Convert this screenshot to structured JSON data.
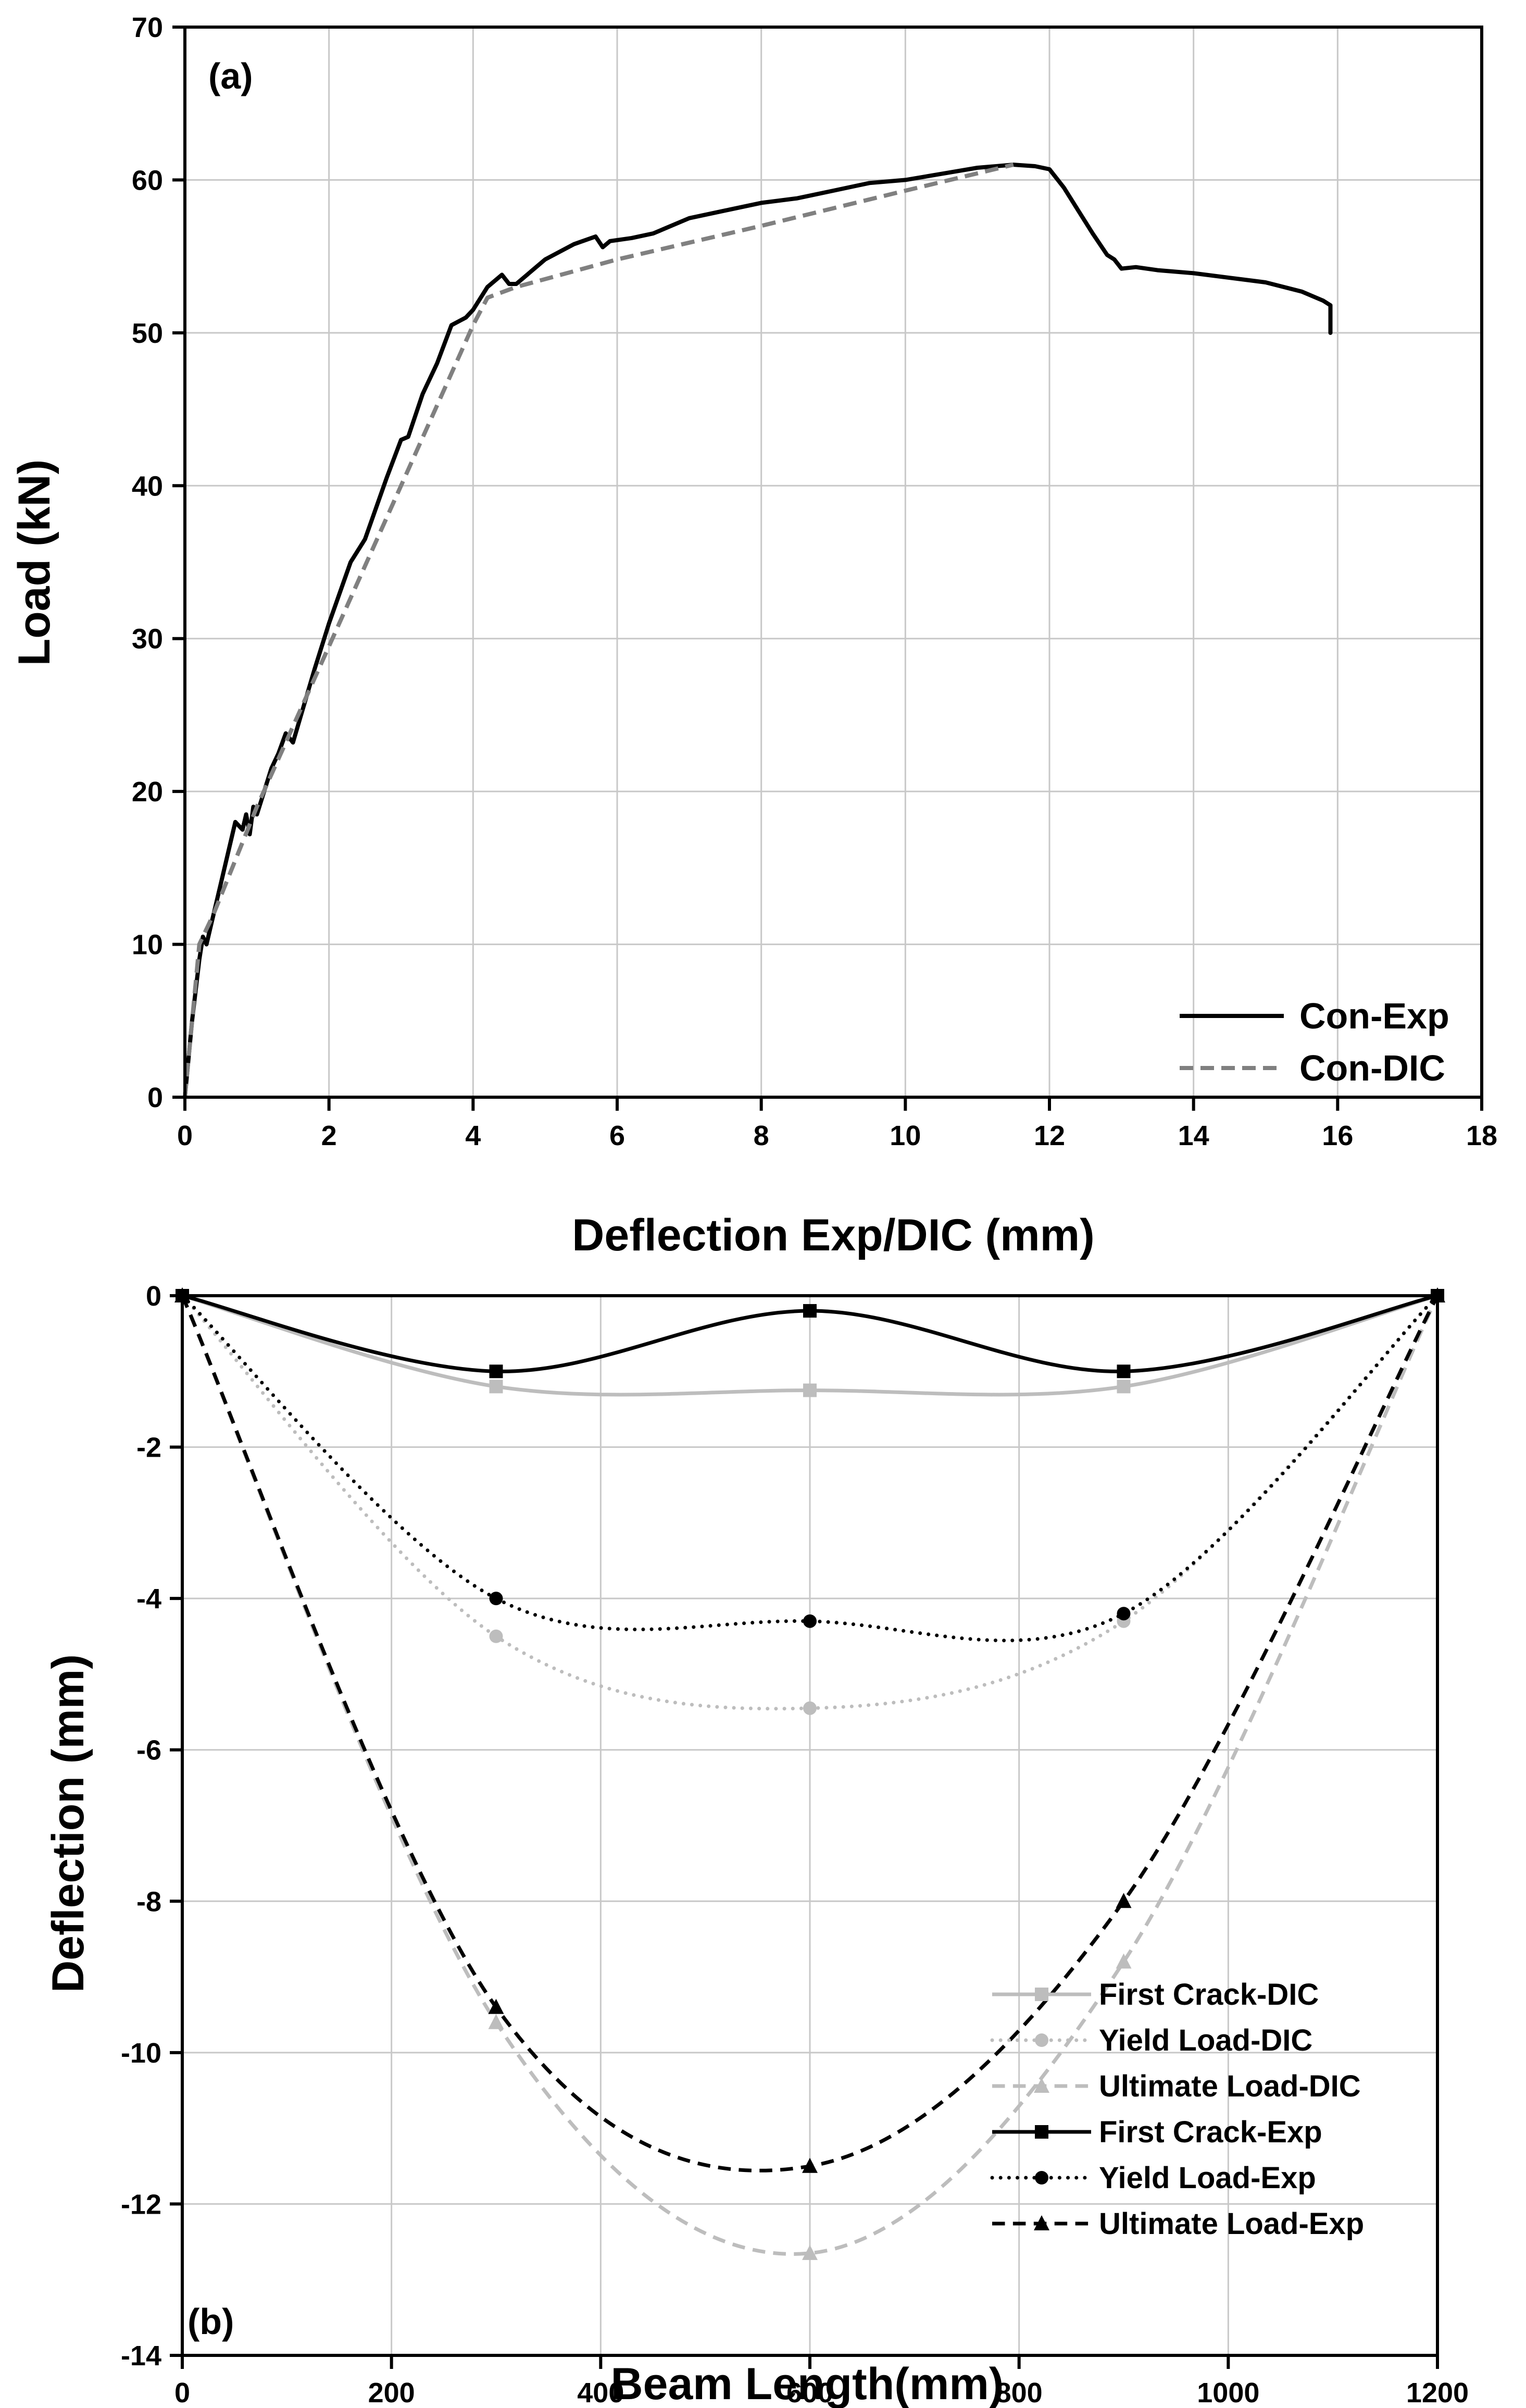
{
  "chart_data": [
    {
      "type": "line",
      "panel_label": "(a)",
      "xlabel": "Deflection Exp/DIC (mm)",
      "ylabel": "Load (kN)",
      "xlim": [
        0,
        18
      ],
      "ylim": [
        0,
        70
      ],
      "xticks": [
        0,
        2,
        4,
        6,
        8,
        10,
        12,
        14,
        16,
        18
      ],
      "yticks": [
        0,
        10,
        20,
        30,
        40,
        50,
        60,
        70
      ],
      "grid": true,
      "legend_position": "bottom-right",
      "series": [
        {
          "name": "Con-Exp",
          "color": "#000000",
          "dash": "solid",
          "x": [
            0,
            0.1,
            0.2,
            0.25,
            0.3,
            0.35,
            0.4,
            0.5,
            0.6,
            0.7,
            0.8,
            0.85,
            0.9,
            0.95,
            1.0,
            1.2,
            1.3,
            1.4,
            1.5,
            1.8,
            2.0,
            2.3,
            2.5,
            2.8,
            3.0,
            3.1,
            3.3,
            3.5,
            3.7,
            3.9,
            4.0,
            4.2,
            4.4,
            4.5,
            4.6,
            5.0,
            5.4,
            5.7,
            5.8,
            5.9,
            6.2,
            6.5,
            7.0,
            7.5,
            8.0,
            8.5,
            9.0,
            9.5,
            10.0,
            10.5,
            11.0,
            11.5,
            11.8,
            12.0,
            12.2,
            12.4,
            12.6,
            12.8,
            12.9,
            13.0,
            13.2,
            13.5,
            14.0,
            14.5,
            15.0,
            15.5,
            15.8,
            15.9,
            15.9
          ],
          "y": [
            0,
            5,
            9,
            10.5,
            10,
            11,
            12,
            14,
            16,
            18,
            17.5,
            18.5,
            17.2,
            19,
            18.5,
            21.5,
            22.5,
            23.8,
            23.2,
            28,
            31,
            35,
            36.5,
            40.5,
            43,
            43.2,
            46,
            48,
            50.5,
            51,
            51.5,
            53,
            53.8,
            53.2,
            53.2,
            54.8,
            55.8,
            56.3,
            55.6,
            56,
            56.2,
            56.5,
            57.5,
            58,
            58.5,
            58.8,
            59.3,
            59.8,
            60,
            60.4,
            60.8,
            61,
            60.9,
            60.7,
            59.5,
            58,
            56.5,
            55.1,
            54.8,
            54.2,
            54.3,
            54.1,
            53.9,
            53.6,
            53.3,
            52.7,
            52.1,
            51.8,
            50
          ]
        },
        {
          "name": "Con-DIC",
          "color": "#808080",
          "dash": "dashed",
          "x": [
            0,
            0.2,
            0.4,
            1.0,
            2.0,
            3.0,
            4.0,
            4.2,
            4.6,
            6.0,
            8.0,
            10.0,
            11.5
          ],
          "y": [
            0,
            10,
            12,
            19,
            29.5,
            40,
            50.5,
            52.3,
            53,
            54.8,
            57,
            59.3,
            61
          ]
        }
      ]
    },
    {
      "type": "line",
      "panel_label": "(b)",
      "xlabel": "Beam Length(mm)",
      "ylabel": "Deflection (mm)",
      "xlim": [
        0,
        1200
      ],
      "ylim": [
        -14,
        0
      ],
      "xticks": [
        0,
        200,
        400,
        600,
        800,
        1000,
        1200
      ],
      "yticks": [
        0,
        -2,
        -4,
        -6,
        -8,
        -10,
        -12,
        -14
      ],
      "grid": true,
      "legend_position": "bottom-right",
      "x": [
        0,
        300,
        600,
        900,
        1200
      ],
      "series": [
        {
          "name": "First Crack-DIC",
          "color": "#bdbdbd",
          "dash": "solid",
          "marker": "square",
          "values": [
            0,
            -1.2,
            -1.25,
            -1.2,
            0
          ]
        },
        {
          "name": "Yield Load-DIC",
          "color": "#bdbdbd",
          "dash": "dotted",
          "marker": "circle",
          "values": [
            0,
            -4.5,
            -5.45,
            -4.3,
            0
          ]
        },
        {
          "name": "Ultimate Load-DIC",
          "color": "#bdbdbd",
          "dash": "dashed",
          "marker": "triangle",
          "values": [
            0,
            -9.6,
            -12.65,
            -8.8,
            0
          ]
        },
        {
          "name": "First Crack-Exp",
          "color": "#000000",
          "dash": "solid",
          "marker": "square",
          "values": [
            0,
            -1.0,
            -0.2,
            -1.0,
            0
          ]
        },
        {
          "name": "Yield Load-Exp",
          "color": "#000000",
          "dash": "dotted",
          "marker": "circle",
          "values": [
            0,
            -4.0,
            -4.3,
            -4.2,
            0
          ]
        },
        {
          "name": "Ultimate Load-Exp",
          "color": "#000000",
          "dash": "dashed",
          "marker": "triangle",
          "values": [
            0,
            -9.4,
            -11.5,
            -8.0,
            0
          ]
        }
      ]
    }
  ]
}
